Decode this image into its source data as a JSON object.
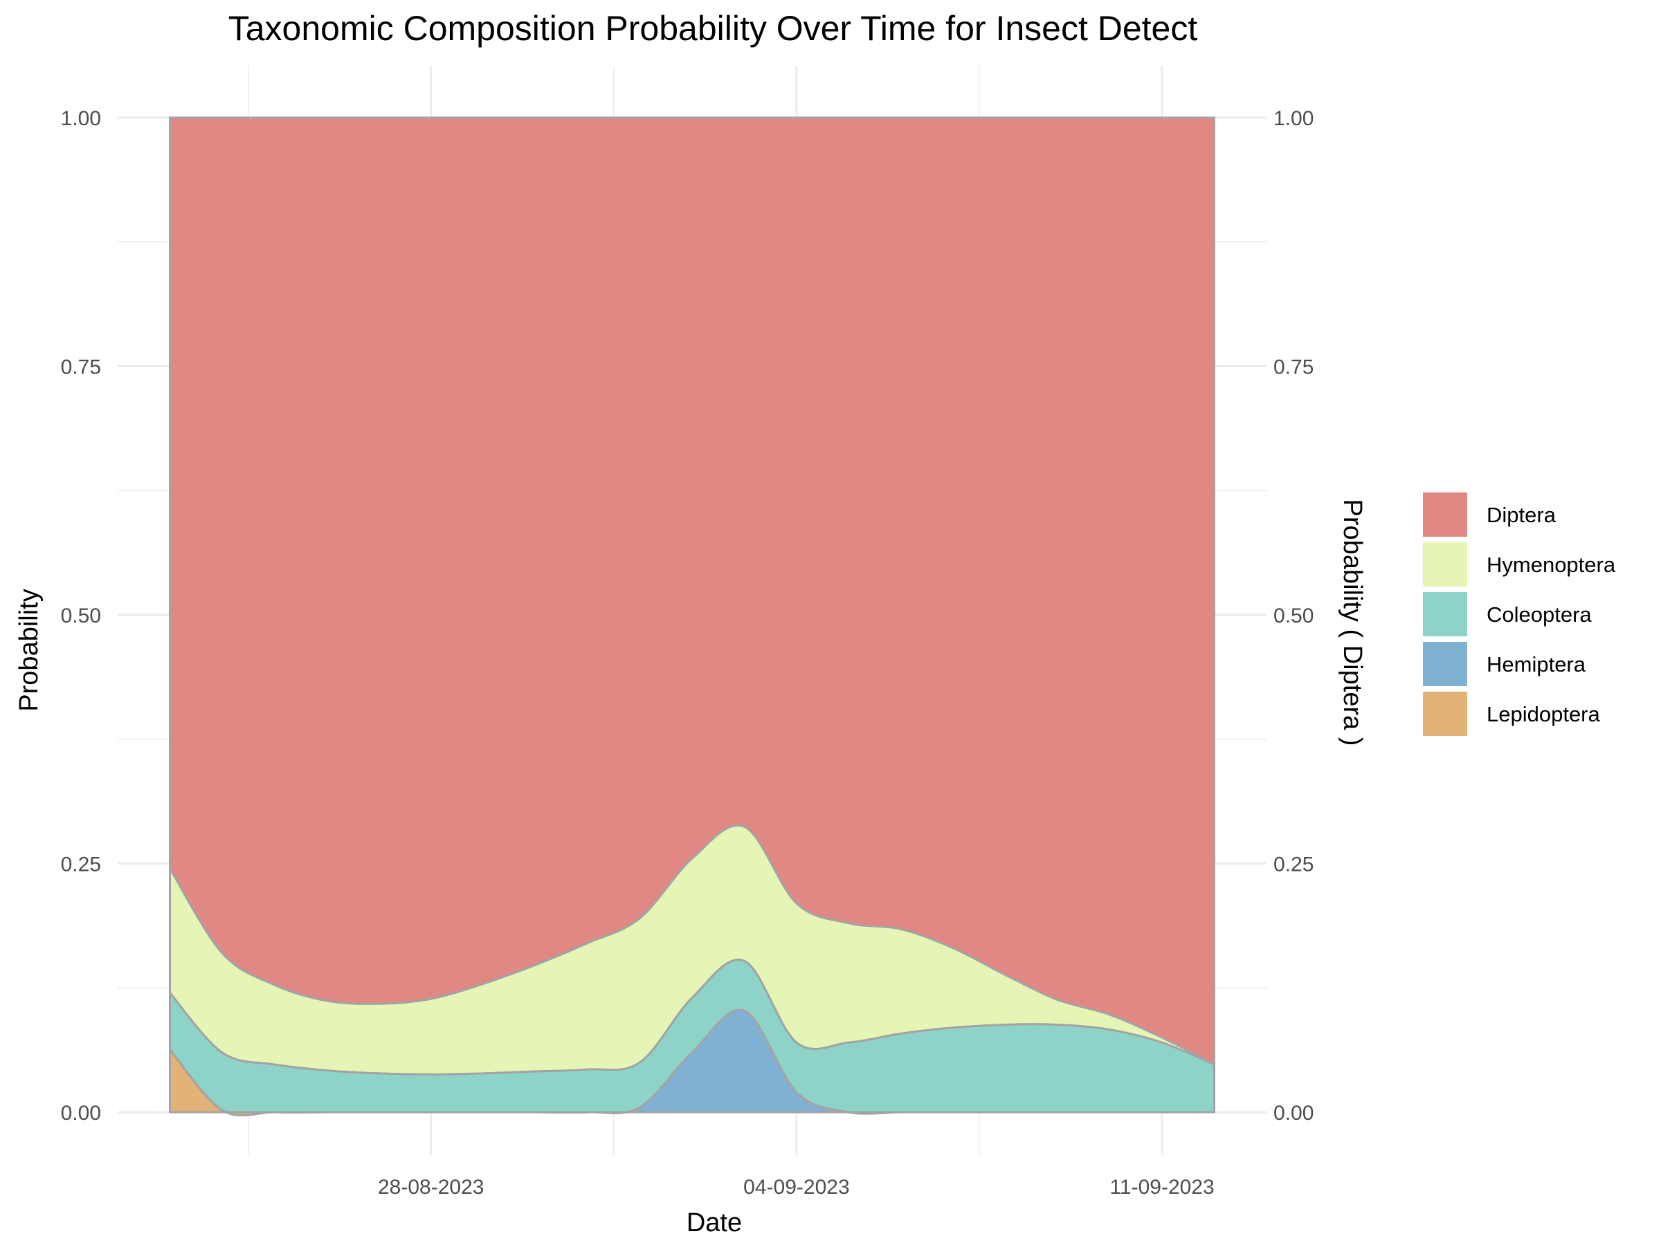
{
  "chart_data": {
    "type": "area",
    "stacked": true,
    "title": "Taxonomic Composition Probability Over Time for Insect Detect",
    "xlabel": "Date",
    "ylabel": "Probability",
    "ylabel_right": "Probability ( Diptera )",
    "ylim": [
      0,
      1
    ],
    "y_ticks": [
      "0.00",
      "0.25",
      "0.50",
      "0.75",
      "1.00"
    ],
    "y_ticks_right": [
      "1.00",
      "0.75",
      "0.50",
      "0.25",
      "0.00"
    ],
    "x_tick_labels": [
      "28-08-2023",
      "04-09-2023",
      "11-09-2023"
    ],
    "x_ticks": [
      "2023-08-28",
      "2023-09-04",
      "2023-09-11"
    ],
    "xlim": [
      "2023-08-22",
      "2023-09-13"
    ],
    "grid": true,
    "legend_position": "right",
    "x": [
      "2023-08-23",
      "2023-08-24",
      "2023-08-25",
      "2023-08-26",
      "2023-08-27",
      "2023-08-28",
      "2023-08-29",
      "2023-08-30",
      "2023-08-31",
      "2023-09-01",
      "2023-09-02",
      "2023-09-03",
      "2023-09-04",
      "2023-09-05",
      "2023-09-06",
      "2023-09-07",
      "2023-09-08",
      "2023-09-09",
      "2023-09-10",
      "2023-09-11",
      "2023-09-12"
    ],
    "series": [
      {
        "name": "Lepidoptera",
        "color": "#E2B277",
        "values": [
          0.063,
          0.002,
          0,
          0,
          0,
          0,
          0,
          0,
          0,
          0,
          0,
          0,
          0,
          0,
          0,
          0,
          0,
          0,
          0,
          0,
          0
        ]
      },
      {
        "name": "Hemiptera",
        "color": "#80B0D2",
        "values": [
          0,
          0,
          0,
          0,
          0,
          0,
          0,
          0,
          0,
          0.005,
          0.06,
          0.102,
          0.02,
          0,
          0,
          0,
          0,
          0,
          0,
          0,
          0
        ]
      },
      {
        "name": "Coleoptera",
        "color": "#8DD3C7",
        "values": [
          0.057,
          0.058,
          0.048,
          0.042,
          0.039,
          0.038,
          0.039,
          0.041,
          0.043,
          0.045,
          0.055,
          0.05,
          0.05,
          0.07,
          0.079,
          0.085,
          0.088,
          0.088,
          0.083,
          0.07,
          0.048
        ]
      },
      {
        "name": "Hymenoptera",
        "color": "#E5F5B5",
        "values": [
          0.125,
          0.1,
          0.08,
          0.07,
          0.07,
          0.076,
          0.09,
          0.107,
          0.127,
          0.145,
          0.14,
          0.135,
          0.14,
          0.12,
          0.105,
          0.08,
          0.05,
          0.025,
          0.015,
          0.005,
          0
        ]
      },
      {
        "name": "Diptera",
        "color": "#E18884",
        "values": [
          0.755,
          0.84,
          0.872,
          0.888,
          0.891,
          0.886,
          0.871,
          0.852,
          0.83,
          0.805,
          0.745,
          0.713,
          0.79,
          0.81,
          0.816,
          0.835,
          0.862,
          0.887,
          0.902,
          0.925,
          0.952
        ]
      }
    ]
  },
  "legend": {
    "items": [
      {
        "label": "Diptera",
        "color": "#E18884"
      },
      {
        "label": "Hymenoptera",
        "color": "#E5F5B5"
      },
      {
        "label": "Coleoptera",
        "color": "#8DD3C7"
      },
      {
        "label": "Hemiptera",
        "color": "#80B0D2"
      },
      {
        "label": "Lepidoptera",
        "color": "#E2B277"
      }
    ]
  },
  "colors": {
    "gridline": "#EBEBEB",
    "area_outline": "#A3A3A3",
    "tick_text": "#4D4D4D",
    "text": "#000000"
  }
}
